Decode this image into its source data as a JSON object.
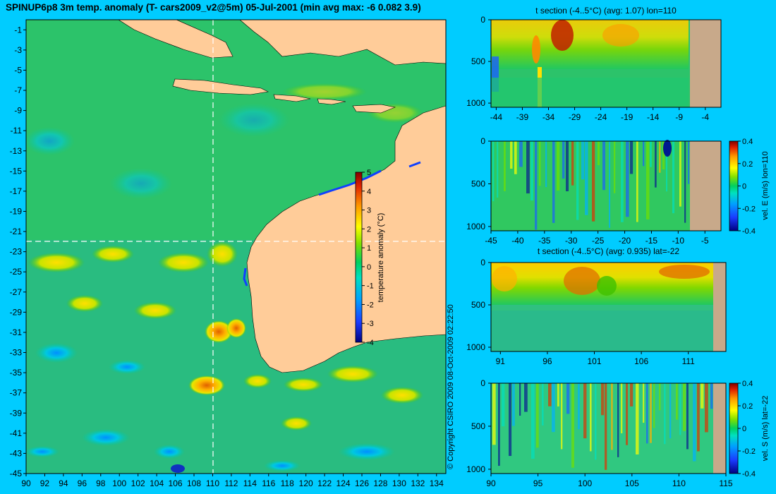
{
  "header": {
    "title": "SPINUP6p8 3m temp. anomaly (T- cars2009_v2@5m) 05-Jul-2001 (min avg max: -6 0.082 3.9)"
  },
  "copyright": "© Copyright CSIRO 2009   08-Oct-2009 02:22:50",
  "colors": {
    "background": "#00ccff",
    "land": "#ffcc99",
    "section_land": "#c8a98a",
    "crosshair": "#ffffff"
  },
  "chart_data": [
    {
      "id": "map",
      "type": "heatmap",
      "title": "SPINUP6p8 3m temp. anomaly (T- cars2009_v2@5m) 05-Jul-2001 (min avg max: -6 0.082 3.9)",
      "x_ticks": [
        90,
        92,
        94,
        96,
        98,
        100,
        102,
        104,
        106,
        108,
        110,
        112,
        114,
        116,
        118,
        120,
        122,
        124,
        126,
        128,
        130,
        132,
        134
      ],
      "y_ticks": [
        -1,
        -3,
        -5,
        -7,
        -9,
        -11,
        -13,
        -15,
        -17,
        -19,
        -21,
        -23,
        -25,
        -27,
        -29,
        -31,
        -33,
        -35,
        -37,
        -39,
        -41,
        -43,
        -45
      ],
      "xlim": [
        90,
        135
      ],
      "ylim": [
        -45,
        0
      ],
      "crosshair_lon": 110,
      "crosshair_lat": -22,
      "colorbar": {
        "label": "temperature anomaly (°C)",
        "ticks": [
          "5",
          "4",
          "3",
          "2",
          "1",
          "0",
          "-1",
          "-2",
          "-3",
          "-4"
        ],
        "range": [
          -4,
          5
        ]
      }
    },
    {
      "id": "section1",
      "type": "heatmap",
      "title": "t section (-4..5°C) (avg: 1.07) lon=110",
      "x_ticks": [
        "-44",
        "-39",
        "-34",
        "-29",
        "-24",
        "-19",
        "-14",
        "-9",
        "-4"
      ],
      "y_ticks": [
        "0",
        "500",
        "1000"
      ],
      "xlim": [
        -45,
        -1
      ],
      "ylim": [
        0,
        1050
      ],
      "land_from": -8.5
    },
    {
      "id": "section2",
      "type": "heatmap",
      "title": "",
      "x_ticks": [
        "-45",
        "-40",
        "-35",
        "-30",
        "-25",
        "-20",
        "-15",
        "-10",
        "-5"
      ],
      "y_ticks": [
        "0",
        "500",
        "1000"
      ],
      "xlim": [
        -45,
        -2
      ],
      "ylim": [
        0,
        1050
      ],
      "land_from": -8.2,
      "colorbar": {
        "label": "vel. E (m/s) lon=110",
        "ticks": [
          "0.4",
          "0.2",
          "0",
          "-0.2",
          "-0.4"
        ],
        "range": [
          -0.4,
          0.4
        ]
      }
    },
    {
      "id": "section3",
      "type": "heatmap",
      "title": "t section (-4..5°C) (avg: 0.935) lat=-22",
      "x_ticks": [
        "91",
        "96",
        "101",
        "106",
        "111"
      ],
      "y_ticks": [
        "0",
        "500",
        "1000"
      ],
      "xlim": [
        90,
        115
      ],
      "ylim": [
        0,
        1050
      ],
      "land_from": 113.5
    },
    {
      "id": "section4",
      "type": "heatmap",
      "title": "",
      "x_ticks": [
        "90",
        "95",
        "100",
        "105",
        "110",
        "115"
      ],
      "y_ticks": [
        "0",
        "500",
        "1000"
      ],
      "xlim": [
        90,
        115
      ],
      "ylim": [
        0,
        1050
      ],
      "land_from": 113.5,
      "colorbar": {
        "label": "vel. S (m/s) lat=-22",
        "ticks": [
          "0.4",
          "0.2",
          "0",
          "-0.2",
          "-0.4"
        ],
        "range": [
          -0.4,
          0.4
        ]
      }
    }
  ]
}
